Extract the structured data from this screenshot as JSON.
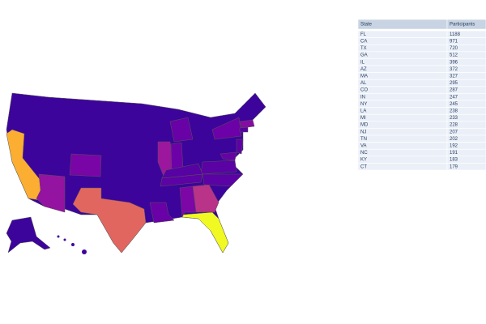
{
  "table": {
    "header": [
      "State",
      "Participants"
    ],
    "rows": [
      [
        "FL",
        1188
      ],
      [
        "CA",
        971
      ],
      [
        "TX",
        720
      ],
      [
        "GA",
        512
      ],
      [
        "IL",
        396
      ],
      [
        "AZ",
        372
      ],
      [
        "MA",
        327
      ],
      [
        "AL",
        295
      ],
      [
        "CO",
        287
      ],
      [
        "IN",
        247
      ],
      [
        "NY",
        245
      ],
      [
        "LA",
        238
      ],
      [
        "MI",
        233
      ],
      [
        "MD",
        228
      ],
      [
        "NJ",
        207
      ],
      [
        "TN",
        202
      ],
      [
        "VA",
        192
      ],
      [
        "NC",
        191
      ],
      [
        "KY",
        183
      ],
      [
        "CT",
        179
      ]
    ]
  }
}
